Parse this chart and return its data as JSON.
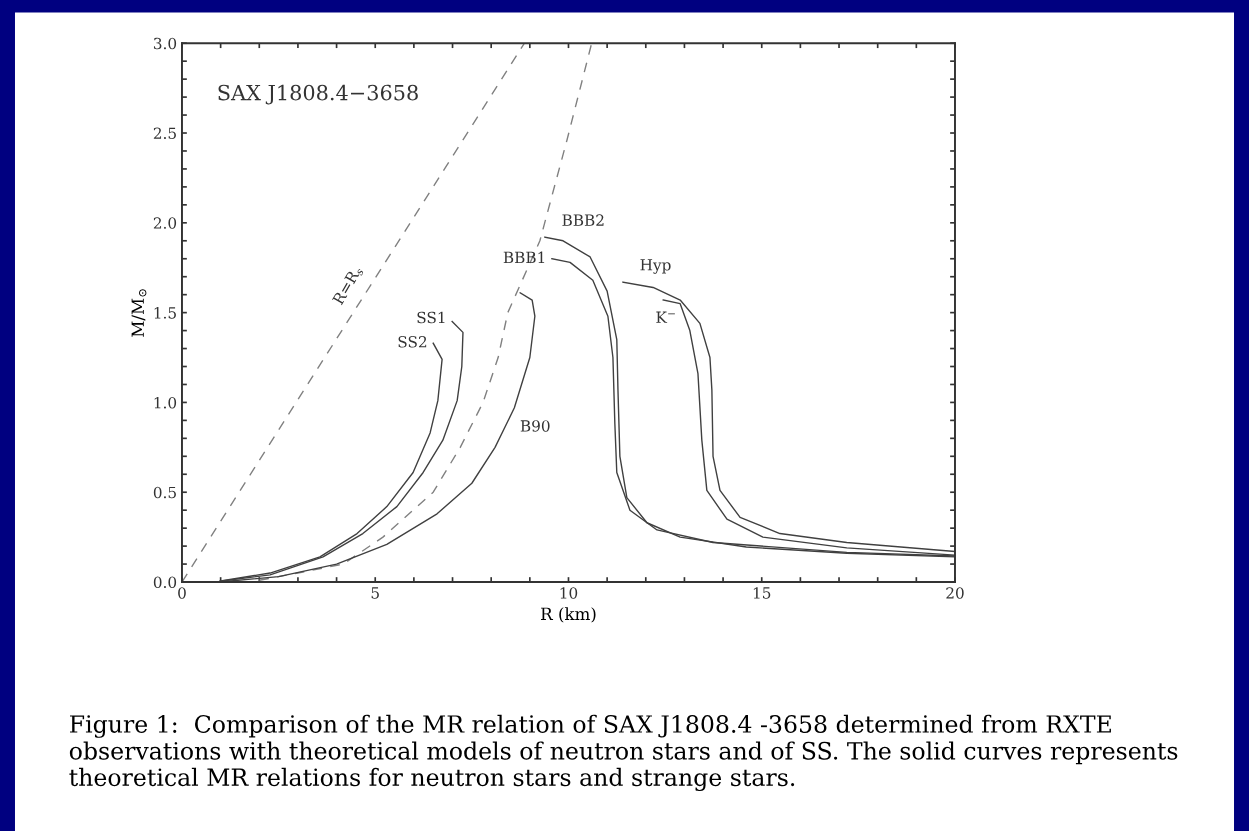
{
  "chart_data": {
    "type": "line",
    "xlabel": "R (km)",
    "ylabel": "M/M$_{⊙}$",
    "xlim": [
      0,
      20
    ],
    "ylim": [
      0,
      3.0
    ],
    "xticks": [
      0,
      {
        "value": 1,
        "label": null
      },
      {
        "value": 2,
        "label": null
      },
      {
        "value": 3,
        "label": null
      },
      {
        "value": 4,
        "label": null
      },
      5,
      {
        "value": 6,
        "label": null
      },
      {
        "value": 7,
        "label": null
      },
      {
        "value": 8,
        "label": null
      },
      {
        "value": 9,
        "label": null
      },
      10,
      {
        "value": 11,
        "label": null
      },
      {
        "value": 12,
        "label": null
      },
      {
        "value": 13,
        "label": null
      },
      {
        "value": 14,
        "label": null
      },
      15,
      {
        "value": 16,
        "label": null
      },
      {
        "value": 17,
        "label": null
      },
      {
        "value": 18,
        "label": null
      },
      {
        "value": 19,
        "label": null
      },
      20
    ],
    "yticks": [
      {
        "value": 0,
        "label": "0.0"
      },
      {
        "value": 0.1,
        "label": null
      },
      {
        "value": 0.2,
        "label": null
      },
      {
        "value": 0.3,
        "label": null
      },
      {
        "value": 0.4,
        "label": null
      },
      {
        "value": 0.5,
        "label": "0.5"
      },
      {
        "value": 0.6,
        "label": null
      },
      {
        "value": 0.7,
        "label": null
      },
      {
        "value": 0.8,
        "label": null
      },
      {
        "value": 0.9,
        "label": null
      },
      {
        "value": 1.0,
        "label": "1.0"
      },
      {
        "value": 1.1,
        "label": null
      },
      {
        "value": 1.2,
        "label": null
      },
      {
        "value": 1.3,
        "label": null
      },
      {
        "value": 1.4,
        "label": null
      },
      {
        "value": 1.5,
        "label": "1.5"
      },
      {
        "value": 1.6,
        "label": null
      },
      {
        "value": 1.7,
        "label": null
      },
      {
        "value": 1.8,
        "label": null
      },
      {
        "value": 1.9,
        "label": null
      },
      {
        "value": 2.0,
        "label": "2.0"
      },
      {
        "value": 2.1,
        "label": null
      },
      {
        "value": 2.2,
        "label": null
      },
      {
        "value": 2.3,
        "label": null
      },
      {
        "value": 2.4,
        "label": null
      },
      {
        "value": 2.5,
        "label": "2.5"
      },
      {
        "value": 2.6,
        "label": null
      },
      {
        "value": 2.7,
        "label": null
      },
      {
        "value": 2.8,
        "label": null
      },
      {
        "value": 2.9,
        "label": null
      },
      {
        "value": 3.0,
        "label": "3.0"
      }
    ],
    "grid": false,
    "legend": false,
    "marker": "none",
    "series": [
      {
        "color": "#808080",
        "line_style": "dashed",
        "x": [
          0,
          8.86
        ],
        "values": [
          0,
          3.0
        ]
      },
      {
        "color": "#808080",
        "line_style": "dashed",
        "x": [
          2.0,
          3.0,
          4.17,
          5.2,
          6.5,
          7.2,
          7.79,
          8.18,
          8.43,
          9.26,
          9.96,
          10.6
        ],
        "values": [
          0.01,
          0.05,
          0.1,
          0.25,
          0.5,
          0.75,
          1.0,
          1.25,
          1.5,
          1.9,
          2.46,
          3.0
        ]
      },
      {
        "name": "SS2",
        "color": "#404040",
        "line_style": "solid",
        "x": [
          6.5,
          6.73,
          6.62,
          6.42,
          5.98,
          5.3,
          4.53,
          3.57,
          2.28,
          0.98
        ],
        "values": [
          1.33,
          1.24,
          1.01,
          0.83,
          0.61,
          0.42,
          0.27,
          0.14,
          0.05,
          0.005
        ]
      },
      {
        "name": "SS1",
        "color": "#404040",
        "line_style": "solid",
        "x": [
          6.99,
          7.27,
          7.24,
          7.12,
          6.75,
          6.24,
          5.56,
          4.68,
          3.65,
          2.28,
          1.0
        ],
        "values": [
          1.45,
          1.39,
          1.2,
          1.01,
          0.79,
          0.61,
          0.42,
          0.27,
          0.14,
          0.04,
          0.005
        ]
      },
      {
        "name": "B90",
        "color": "#404040",
        "line_style": "solid",
        "x": [
          8.75,
          9.06,
          9.13,
          9.0,
          8.6,
          8.1,
          7.5,
          6.6,
          5.3,
          4.0,
          2.5,
          1.2
        ],
        "values": [
          1.61,
          1.57,
          1.48,
          1.25,
          0.97,
          0.75,
          0.55,
          0.38,
          0.21,
          0.1,
          0.03,
          0.005
        ]
      },
      {
        "name": "BBB2",
        "color": "#404040",
        "line_style": "solid",
        "x": [
          9.39,
          9.86,
          10.56,
          11.0,
          11.25,
          11.28,
          11.33,
          11.51,
          12.03,
          12.89,
          14.6,
          17.2,
          20.0
        ],
        "values": [
          1.92,
          1.9,
          1.81,
          1.62,
          1.35,
          1.07,
          0.7,
          0.47,
          0.33,
          0.25,
          0.195,
          0.16,
          0.14
        ]
      },
      {
        "name": "BBB1",
        "color": "#404040",
        "line_style": "solid",
        "x": [
          9.57,
          10.04,
          10.63,
          11.02,
          11.15,
          11.2,
          11.25,
          11.59,
          12.29,
          13.74,
          17.2,
          20.0
        ],
        "values": [
          1.8,
          1.78,
          1.68,
          1.48,
          1.25,
          0.88,
          0.61,
          0.4,
          0.29,
          0.22,
          0.165,
          0.145
        ]
      },
      {
        "name": "Hyp",
        "color": "#404040",
        "line_style": "solid",
        "x": [
          11.41,
          12.19,
          12.89,
          13.4,
          13.66,
          13.71,
          13.74,
          13.92,
          14.44,
          15.47,
          17.2,
          20.0
        ],
        "values": [
          1.67,
          1.64,
          1.57,
          1.44,
          1.25,
          1.07,
          0.7,
          0.51,
          0.36,
          0.27,
          0.22,
          0.17
        ]
      },
      {
        "name": "K$^{−}$",
        "color": "#404040",
        "line_style": "solid",
        "x": [
          12.45,
          12.89,
          13.14,
          13.35,
          13.45,
          13.58,
          14.1,
          15.03,
          17.2,
          20.0
        ],
        "values": [
          1.57,
          1.55,
          1.4,
          1.16,
          0.79,
          0.51,
          0.35,
          0.25,
          0.19,
          0.15
        ]
      }
    ],
    "annotations": [
      "SAX J1808.4−3658",
      "R=R$_{s}$",
      "Figure 1:  Comparison of the MR relation of SAX J1808.4 -3658 determined from RXTE observations with theoretical models of neutron stars and of SS. The solid curves represents theoretical MR relations for neutron stars and strange stars."
    ]
  }
}
